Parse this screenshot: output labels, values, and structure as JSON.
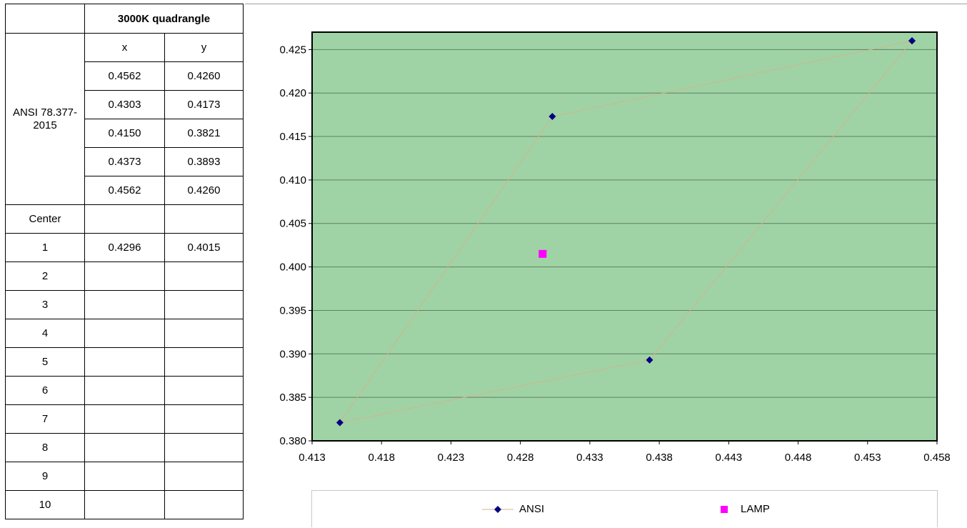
{
  "table": {
    "title": "3000K quadrangle",
    "col_x": "x",
    "col_y": "y",
    "group_label": "ANSI 78.377-2015",
    "ansi_rows": [
      {
        "x": "0.4562",
        "y": "0.4260"
      },
      {
        "x": "0.4303",
        "y": "0.4173"
      },
      {
        "x": "0.4150",
        "y": "0.3821"
      },
      {
        "x": "0.4373",
        "y": "0.3893"
      },
      {
        "x": "0.4562",
        "y": "0.4260"
      }
    ],
    "center_label": "Center",
    "sample_rows": [
      {
        "n": "1",
        "x": "0.4296",
        "y": "0.4015"
      },
      {
        "n": "2",
        "x": "",
        "y": ""
      },
      {
        "n": "3",
        "x": "",
        "y": ""
      },
      {
        "n": "4",
        "x": "",
        "y": ""
      },
      {
        "n": "5",
        "x": "",
        "y": ""
      },
      {
        "n": "6",
        "x": "",
        "y": ""
      },
      {
        "n": "7",
        "x": "",
        "y": ""
      },
      {
        "n": "8",
        "x": "",
        "y": ""
      },
      {
        "n": "9",
        "x": "",
        "y": ""
      },
      {
        "n": "10",
        "x": "",
        "y": ""
      }
    ]
  },
  "chart_data": {
    "type": "scatter",
    "title": "",
    "xlabel": "",
    "ylabel": "",
    "xlim": [
      0.413,
      0.458
    ],
    "ylim": [
      0.38,
      0.427
    ],
    "x_ticks": [
      "0.413",
      "0.418",
      "0.423",
      "0.428",
      "0.433",
      "0.438",
      "0.443",
      "0.448",
      "0.453",
      "0.458"
    ],
    "x_tick_values": [
      0.413,
      0.418,
      0.423,
      0.428,
      0.433,
      0.438,
      0.443,
      0.448,
      0.453,
      0.458
    ],
    "y_ticks": [
      "0.380",
      "0.385",
      "0.390",
      "0.395",
      "0.400",
      "0.405",
      "0.410",
      "0.415",
      "0.420",
      "0.425"
    ],
    "y_tick_values": [
      0.38,
      0.385,
      0.39,
      0.395,
      0.4,
      0.405,
      0.41,
      0.415,
      0.42,
      0.425
    ],
    "grid": "horizontal",
    "plot_background": "#9fd3a5",
    "legend_position": "bottom",
    "series": [
      {
        "name": "ANSI",
        "marker": "diamond",
        "color": "#000080",
        "line_color": "#d2b48c",
        "points": [
          {
            "x": 0.4562,
            "y": 0.426
          },
          {
            "x": 0.4303,
            "y": 0.4173
          },
          {
            "x": 0.415,
            "y": 0.3821
          },
          {
            "x": 0.4373,
            "y": 0.3893
          },
          {
            "x": 0.4562,
            "y": 0.426
          }
        ]
      },
      {
        "name": "LAMP",
        "marker": "square",
        "color": "#ff00ff",
        "points": [
          {
            "x": 0.4296,
            "y": 0.4015
          }
        ]
      }
    ]
  }
}
